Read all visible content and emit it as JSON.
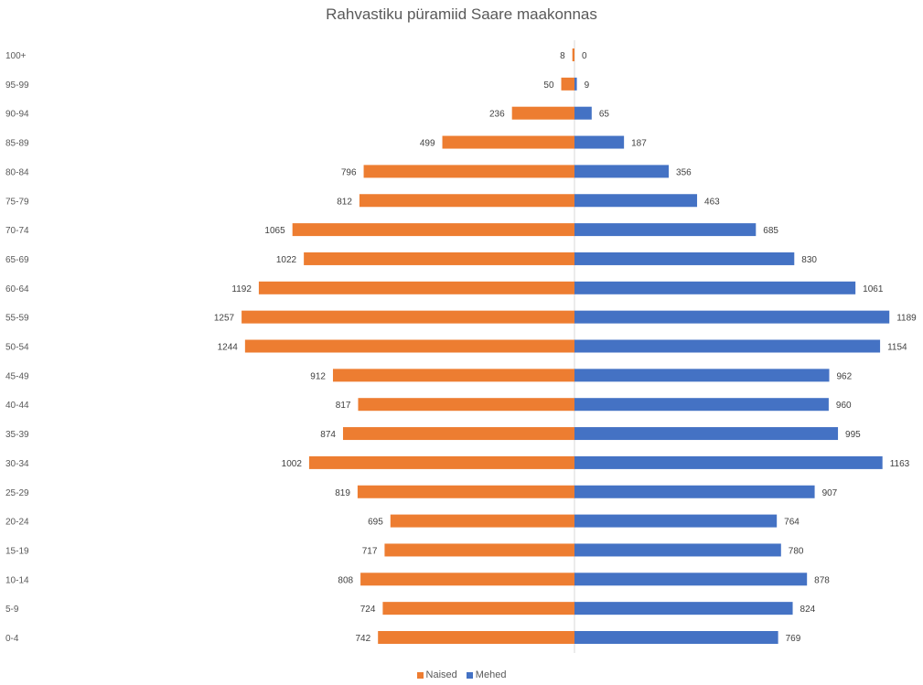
{
  "chart_data": {
    "type": "bar",
    "orientation": "horizontal",
    "title": "Rahvastiku püramiid Saare maakonnas",
    "categories": [
      "100+",
      "95-99",
      "90-94",
      "85-89",
      "80-84",
      "75-79",
      "70-74",
      "65-69",
      "60-64",
      "55-59",
      "50-54",
      "45-49",
      "40-44",
      "35-39",
      "30-34",
      "25-29",
      "20-24",
      "15-19",
      "10-14",
      "5-9",
      "0-4"
    ],
    "series": [
      {
        "name": "Naised",
        "color": "#ED7D31",
        "direction": "left",
        "values": [
          8,
          50,
          236,
          499,
          796,
          812,
          1065,
          1022,
          1192,
          1257,
          1244,
          912,
          817,
          874,
          1002,
          819,
          695,
          717,
          808,
          724,
          742
        ]
      },
      {
        "name": "Mehed",
        "color": "#4472C4",
        "direction": "right",
        "values": [
          0,
          9,
          65,
          187,
          356,
          463,
          685,
          830,
          1061,
          1189,
          1154,
          962,
          960,
          995,
          1163,
          907,
          764,
          780,
          878,
          824,
          769
        ]
      }
    ],
    "data_labels": true,
    "legend_position": "bottom",
    "grid": false
  }
}
